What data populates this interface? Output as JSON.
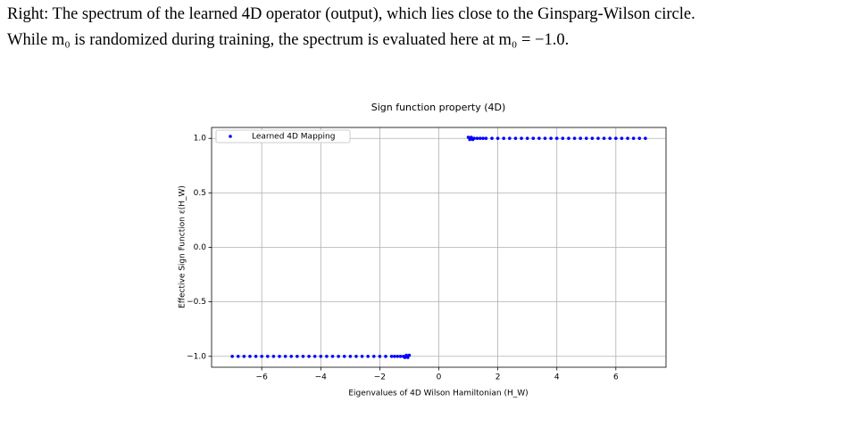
{
  "text": {
    "lines": [
      "Right: The spectrum of the learned 4D operator (output), which lies close to the Ginsparg-Wilson circle.",
      "While m₀ is randomized during training, the spectrum is evaluated here at m₀ = −1.0."
    ]
  },
  "chart_data": {
    "type": "scatter",
    "title": "Sign function property (4D)",
    "x_label": "Eigenvalues of 4D Wilson Hamiltonian (H_W)",
    "y_label": "Effective Sign Function ε(H_W)",
    "xlim": [
      -7.7,
      7.7
    ],
    "ylim": [
      -1.1,
      1.1
    ],
    "xticks": [
      {
        "value": -6,
        "label": "−6"
      },
      {
        "value": -4,
        "label": "−4"
      },
      {
        "value": -2,
        "label": "−2"
      },
      0,
      2,
      4,
      6
    ],
    "yticks": [
      {
        "value": -1,
        "label": "−1.0"
      },
      {
        "value": -0.5,
        "label": "−0.5"
      },
      {
        "value": 0,
        "label": "0.0"
      },
      0.5,
      {
        "value": 1,
        "label": "1.0"
      }
    ],
    "grid": true,
    "legend": "upper left",
    "series": [
      {
        "name": "Learned 4D Mapping",
        "color": "#0000ff",
        "x": [
          1.0,
          1.05,
          1.1,
          1.15,
          1.2,
          1.3,
          1.4,
          1.5,
          1.6,
          1.8,
          2.0,
          2.2,
          2.4,
          2.6,
          2.8,
          3.0,
          3.2,
          3.4,
          3.6,
          3.8,
          4.0,
          4.2,
          4.4,
          4.6,
          4.8,
          5.0,
          5.2,
          5.4,
          5.6,
          5.8,
          6.0,
          6.2,
          6.4,
          6.6,
          6.8,
          7.0,
          -1.0,
          -1.05,
          -1.1,
          -1.15,
          -1.2,
          -1.3,
          -1.4,
          -1.5,
          -1.6,
          -1.8,
          -2.0,
          -2.2,
          -2.4,
          -2.6,
          -2.8,
          -3.0,
          -3.2,
          -3.4,
          -3.6,
          -3.8,
          -4.0,
          -4.2,
          -4.4,
          -4.6,
          -4.8,
          -5.0,
          -5.2,
          -5.4,
          -5.6,
          -5.8,
          -6.0,
          -6.2,
          -6.4,
          -6.6,
          -6.8,
          -7.0
        ],
        "y": [
          1.01,
          0.99,
          1.01,
          0.99,
          1.0,
          1.0,
          1.0,
          1.0,
          1.0,
          1.0,
          1.0,
          1.0,
          1.0,
          1.0,
          1.0,
          1.0,
          1.0,
          1.0,
          1.0,
          1.0,
          1.0,
          1.0,
          1.0,
          1.0,
          1.0,
          1.0,
          1.0,
          1.0,
          1.0,
          1.0,
          1.0,
          1.0,
          1.0,
          1.0,
          1.0,
          1.0,
          -0.99,
          -1.01,
          -0.99,
          -1.01,
          -1.0,
          -1.0,
          -1.0,
          -1.0,
          -1.0,
          -1.0,
          -1.0,
          -1.0,
          -1.0,
          -1.0,
          -1.0,
          -1.0,
          -1.0,
          -1.0,
          -1.0,
          -1.0,
          -1.0,
          -1.0,
          -1.0,
          -1.0,
          -1.0,
          -1.0,
          -1.0,
          -1.0,
          -1.0,
          -1.0,
          -1.0,
          -1.0,
          -1.0,
          -1.0,
          -1.0,
          -1.0
        ]
      }
    ]
  }
}
